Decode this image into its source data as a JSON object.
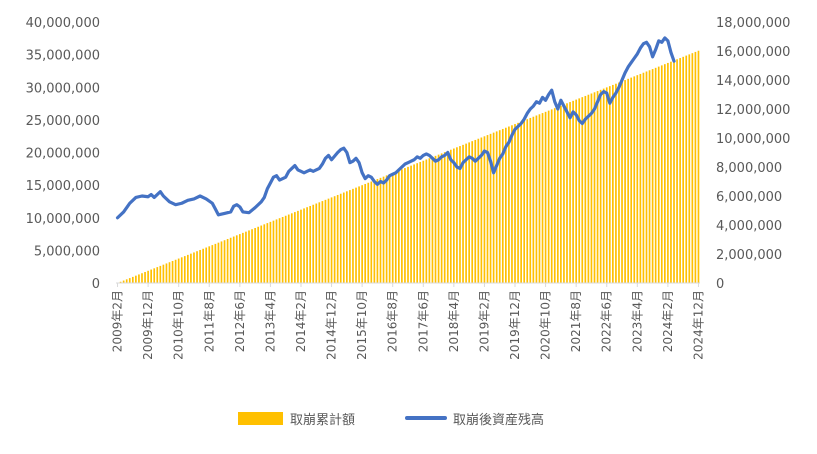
{
  "chart_data": {
    "type": "bar+line",
    "legend": [
      {
        "name": "取崩累計額",
        "color": "#FFC000"
      },
      {
        "name": "取崩後資産残高",
        "color": "#4472C4"
      }
    ],
    "legend_position": "bottom",
    "grid": false,
    "y_left": {
      "min": 0,
      "max": 40000000,
      "ticks": [
        "0",
        "5,000,000",
        "10,000,000",
        "15,000,000",
        "20,000,000",
        "25,000,000",
        "30,000,000",
        "35,000,000",
        "40,000,000"
      ]
    },
    "y_right": {
      "min": 0,
      "max": 18000000,
      "ticks": [
        "0",
        "2,000,000",
        "4,000,000",
        "6,000,000",
        "8,000,000",
        "10,000,000",
        "12,000,000",
        "14,000,000",
        "16,000,000",
        "18,000,000"
      ]
    },
    "x_tick_labels": [
      "2009年2月",
      "2009年12月",
      "2010年10月",
      "2011年8月",
      "2012年6月",
      "2013年4月",
      "2014年2月",
      "2014年12月",
      "2015年10月",
      "2016年8月",
      "2017年6月",
      "2018年4月",
      "2019年2月",
      "2019年12月",
      "2020年10月",
      "2021年8月",
      "2022年6月",
      "2023年4月",
      "2024年2月",
      "2024年12月"
    ],
    "series": [
      {
        "name": "取崩累計額",
        "type": "bar",
        "axis": "left",
        "monthly_start": 0,
        "monthly_end": 35600000,
        "months": 191
      },
      {
        "name": "取崩後資産残高",
        "type": "line",
        "axis": "right",
        "points": [
          [
            0,
            4500000
          ],
          [
            2,
            4900000
          ],
          [
            4,
            5500000
          ],
          [
            6,
            5900000
          ],
          [
            8,
            6000000
          ],
          [
            10,
            5950000
          ],
          [
            11,
            6100000
          ],
          [
            12,
            5900000
          ],
          [
            14,
            6300000
          ],
          [
            15,
            6000000
          ],
          [
            17,
            5600000
          ],
          [
            19,
            5400000
          ],
          [
            21,
            5500000
          ],
          [
            23,
            5700000
          ],
          [
            25,
            5800000
          ],
          [
            27,
            6000000
          ],
          [
            29,
            5800000
          ],
          [
            31,
            5500000
          ],
          [
            32,
            5100000
          ],
          [
            33,
            4700000
          ],
          [
            35,
            4800000
          ],
          [
            37,
            4900000
          ],
          [
            38,
            5300000
          ],
          [
            39,
            5400000
          ],
          [
            40,
            5250000
          ],
          [
            41,
            4900000
          ],
          [
            43,
            4850000
          ],
          [
            45,
            5200000
          ],
          [
            47,
            5600000
          ],
          [
            48,
            5900000
          ],
          [
            49,
            6500000
          ],
          [
            50,
            6900000
          ],
          [
            51,
            7300000
          ],
          [
            52,
            7400000
          ],
          [
            53,
            7100000
          ],
          [
            55,
            7300000
          ],
          [
            56,
            7700000
          ],
          [
            57,
            7900000
          ],
          [
            58,
            8100000
          ],
          [
            59,
            7800000
          ],
          [
            60,
            7700000
          ],
          [
            61,
            7600000
          ],
          [
            62,
            7700000
          ],
          [
            63,
            7800000
          ],
          [
            64,
            7700000
          ],
          [
            66,
            7900000
          ],
          [
            67,
            8200000
          ],
          [
            68,
            8600000
          ],
          [
            69,
            8800000
          ],
          [
            70,
            8500000
          ],
          [
            72,
            9000000
          ],
          [
            73,
            9200000
          ],
          [
            74,
            9300000
          ],
          [
            75,
            9000000
          ],
          [
            76,
            8300000
          ],
          [
            77,
            8400000
          ],
          [
            78,
            8600000
          ],
          [
            79,
            8300000
          ],
          [
            80,
            7600000
          ],
          [
            81,
            7200000
          ],
          [
            82,
            7400000
          ],
          [
            83,
            7300000
          ],
          [
            84,
            7000000
          ],
          [
            85,
            6800000
          ],
          [
            86,
            7000000
          ],
          [
            87,
            6900000
          ],
          [
            88,
            7100000
          ],
          [
            89,
            7400000
          ],
          [
            90,
            7500000
          ],
          [
            91,
            7600000
          ],
          [
            92,
            7800000
          ],
          [
            93,
            8000000
          ],
          [
            94,
            8200000
          ],
          [
            95,
            8300000
          ],
          [
            96,
            8400000
          ],
          [
            97,
            8500000
          ],
          [
            98,
            8700000
          ],
          [
            99,
            8600000
          ],
          [
            100,
            8800000
          ],
          [
            101,
            8900000
          ],
          [
            102,
            8800000
          ],
          [
            103,
            8600000
          ],
          [
            104,
            8400000
          ],
          [
            105,
            8500000
          ],
          [
            106,
            8700000
          ],
          [
            107,
            8800000
          ],
          [
            108,
            9000000
          ],
          [
            109,
            8500000
          ],
          [
            110,
            8300000
          ],
          [
            111,
            8000000
          ],
          [
            112,
            7900000
          ],
          [
            113,
            8300000
          ],
          [
            114,
            8500000
          ],
          [
            115,
            8700000
          ],
          [
            116,
            8600000
          ],
          [
            117,
            8400000
          ],
          [
            118,
            8600000
          ],
          [
            119,
            8800000
          ],
          [
            120,
            9100000
          ],
          [
            121,
            9000000
          ],
          [
            122,
            8400000
          ],
          [
            123,
            7600000
          ],
          [
            124,
            8100000
          ],
          [
            125,
            8600000
          ],
          [
            126,
            8900000
          ],
          [
            127,
            9400000
          ],
          [
            128,
            9700000
          ],
          [
            129,
            10200000
          ],
          [
            130,
            10600000
          ],
          [
            131,
            10800000
          ],
          [
            132,
            11000000
          ],
          [
            133,
            11300000
          ],
          [
            134,
            11700000
          ],
          [
            135,
            12000000
          ],
          [
            136,
            12200000
          ],
          [
            137,
            12500000
          ],
          [
            138,
            12400000
          ],
          [
            139,
            12800000
          ],
          [
            140,
            12600000
          ],
          [
            141,
            13000000
          ],
          [
            142,
            13300000
          ],
          [
            143,
            12500000
          ],
          [
            144,
            12000000
          ],
          [
            145,
            12600000
          ],
          [
            146,
            12200000
          ],
          [
            147,
            11800000
          ],
          [
            148,
            11400000
          ],
          [
            149,
            11800000
          ],
          [
            150,
            11600000
          ],
          [
            151,
            11200000
          ],
          [
            152,
            11000000
          ],
          [
            153,
            11300000
          ],
          [
            154,
            11500000
          ],
          [
            155,
            11700000
          ],
          [
            156,
            12000000
          ],
          [
            157,
            12500000
          ],
          [
            158,
            13000000
          ],
          [
            159,
            13200000
          ],
          [
            160,
            13100000
          ],
          [
            161,
            12400000
          ],
          [
            162,
            12800000
          ],
          [
            163,
            13100000
          ],
          [
            164,
            13500000
          ],
          [
            165,
            14000000
          ],
          [
            166,
            14500000
          ],
          [
            167,
            14900000
          ],
          [
            168,
            15200000
          ],
          [
            169,
            15500000
          ],
          [
            170,
            15800000
          ],
          [
            171,
            16200000
          ],
          [
            172,
            16500000
          ],
          [
            173,
            16600000
          ],
          [
            174,
            16300000
          ],
          [
            175,
            15600000
          ],
          [
            176,
            16100000
          ],
          [
            177,
            16700000
          ],
          [
            178,
            16600000
          ],
          [
            179,
            16900000
          ],
          [
            180,
            16700000
          ],
          [
            181,
            15900000
          ],
          [
            182,
            15300000
          ]
        ]
      }
    ]
  }
}
